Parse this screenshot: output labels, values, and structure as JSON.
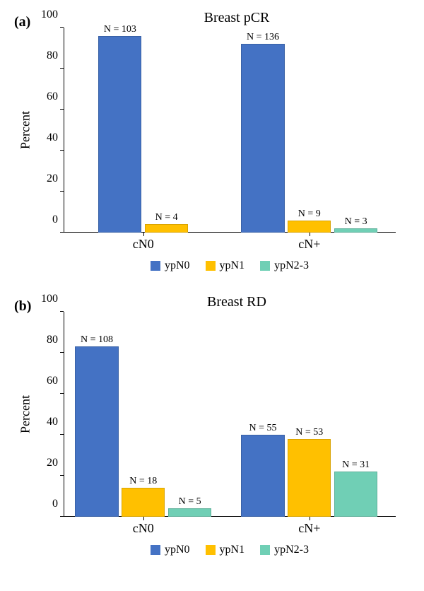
{
  "colors": {
    "ypN0": "#4472c4",
    "ypN1": "#ffc000",
    "ypN2_3": "#70cfb5",
    "axis": "#000000",
    "background": "#ffffff"
  },
  "chartA": {
    "panel_tag": "(a)",
    "title": "Breast pCR",
    "type": "bar",
    "ylabel": "Percent",
    "ylim": [
      0,
      100
    ],
    "ytick_step": 20,
    "yticks": [
      0,
      20,
      40,
      60,
      80,
      100
    ],
    "categories": [
      "cN0",
      "cN+"
    ],
    "series": [
      "ypN0",
      "ypN1",
      "ypN2-3"
    ],
    "bar_colors": [
      "#4472c4",
      "#ffc000",
      "#70cfb5"
    ],
    "bar_width": 0.22,
    "groups": [
      {
        "category": "cN0",
        "bars": [
          {
            "label": "N = 103",
            "value": 96,
            "color": "#4472c4"
          },
          {
            "label": "N = 4",
            "value": 4,
            "color": "#ffc000"
          }
        ]
      },
      {
        "category": "cN+",
        "bars": [
          {
            "label": "N = 136",
            "value": 92,
            "color": "#4472c4"
          },
          {
            "label": "N = 9",
            "value": 6,
            "color": "#ffc000"
          },
          {
            "label": "N = 3",
            "value": 2,
            "color": "#70cfb5"
          }
        ]
      }
    ],
    "legend": [
      {
        "label": "ypN0",
        "color": "#4472c4"
      },
      {
        "label": "ypN1",
        "color": "#ffc000"
      },
      {
        "label": "ypN2-3",
        "color": "#70cfb5"
      }
    ],
    "title_fontsize": 20,
    "label_fontsize": 16
  },
  "chartB": {
    "panel_tag": "(b)",
    "title": "Breast RD",
    "type": "bar",
    "ylabel": "Percent",
    "ylim": [
      0,
      100
    ],
    "ytick_step": 20,
    "yticks": [
      0,
      20,
      40,
      60,
      80,
      100
    ],
    "categories": [
      "cN0",
      "cN+"
    ],
    "series": [
      "ypN0",
      "ypN1",
      "ypN2-3"
    ],
    "bar_colors": [
      "#4472c4",
      "#ffc000",
      "#70cfb5"
    ],
    "bar_width": 0.22,
    "groups": [
      {
        "category": "cN0",
        "bars": [
          {
            "label": "N = 108",
            "value": 83,
            "color": "#4472c4"
          },
          {
            "label": "N = 18",
            "value": 14,
            "color": "#ffc000"
          },
          {
            "label": "N = 5",
            "value": 4,
            "color": "#70cfb5"
          }
        ]
      },
      {
        "category": "cN+",
        "bars": [
          {
            "label": "N = 55",
            "value": 40,
            "color": "#4472c4"
          },
          {
            "label": "N = 53",
            "value": 38,
            "color": "#ffc000"
          },
          {
            "label": "N = 31",
            "value": 22,
            "color": "#70cfb5"
          }
        ]
      }
    ],
    "legend": [
      {
        "label": "ypN0",
        "color": "#4472c4"
      },
      {
        "label": "ypN1",
        "color": "#ffc000"
      },
      {
        "label": "ypN2-3",
        "color": "#70cfb5"
      }
    ],
    "title_fontsize": 20,
    "label_fontsize": 16
  }
}
